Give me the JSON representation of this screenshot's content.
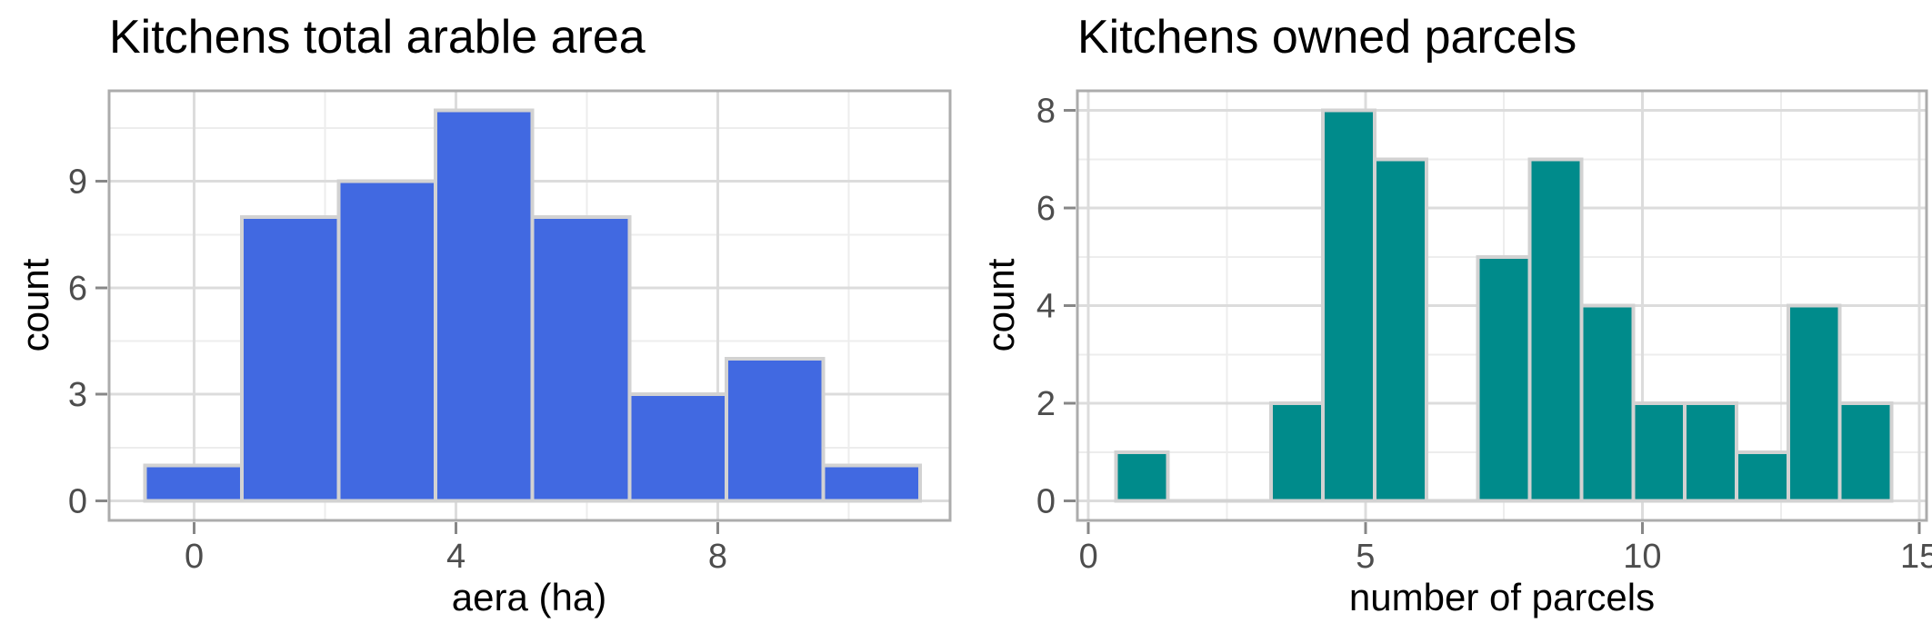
{
  "theme": {
    "background": "#FFFFFF",
    "grid_major": "#DCDCDC",
    "grid_minor": "#EDEDED",
    "panel_border": "#ACACAC",
    "tick_mark": "#878787",
    "tick_label_color": "#4D4D4D",
    "text_color": "#000000",
    "bar_stroke": "#D2D2D2"
  },
  "chart_data": [
    {
      "type": "bar",
      "subtype": "histogram",
      "title": "Kitchens total arable area",
      "xlabel": "aera (ha)",
      "ylabel": "count",
      "bar_color": "#4169E1",
      "bin_start": -0.75,
      "bin_width": 1.48,
      "counts": [
        1,
        8,
        9,
        11,
        8,
        3,
        4,
        1
      ],
      "x_ticks": [
        0,
        4,
        8
      ],
      "x_minor_ticks": [
        2,
        6,
        10
      ],
      "y_ticks": [
        0,
        3,
        6,
        9
      ],
      "y_minor_ticks": [
        1.5,
        4.5,
        7.5,
        10.5
      ],
      "xlim": [
        -1.3,
        11.55
      ],
      "ylim": [
        -0.55,
        11.55
      ],
      "grid": true,
      "legend": false
    },
    {
      "type": "bar",
      "subtype": "histogram",
      "title": "Kitchens owned parcels",
      "xlabel": "number of parcels",
      "ylabel": "count",
      "bar_color": "#008B8B",
      "bin_start": 0.5,
      "bin_width": 0.9333,
      "counts": [
        1,
        0,
        0,
        2,
        8,
        7,
        0,
        5,
        7,
        4,
        2,
        2,
        1,
        4,
        2
      ],
      "x_ticks": [
        0,
        5,
        10,
        15
      ],
      "x_minor_ticks": [
        2.5,
        7.5,
        12.5
      ],
      "y_ticks": [
        0,
        2,
        4,
        6,
        8
      ],
      "y_minor_ticks": [
        1,
        3,
        5,
        7
      ],
      "xlim": [
        -0.2,
        15.13
      ],
      "ylim": [
        -0.4,
        8.4
      ],
      "grid": true,
      "legend": false
    }
  ]
}
